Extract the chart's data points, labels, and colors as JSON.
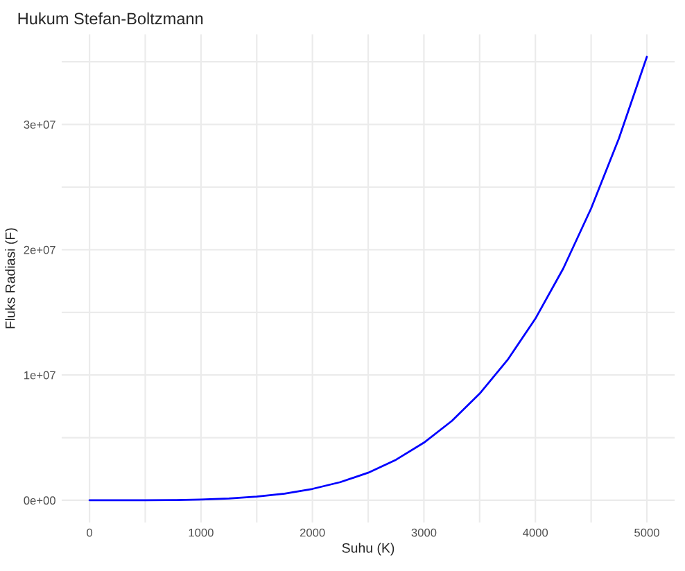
{
  "chart_data": {
    "type": "line",
    "title": "Hukum Stefan-Boltzmann",
    "xlabel": "Suhu (K)",
    "ylabel": "Fluks Radiasi (F)",
    "x": [
      0,
      250,
      500,
      750,
      1000,
      1250,
      1500,
      1750,
      2000,
      2250,
      2500,
      2750,
      3000,
      3250,
      3500,
      3750,
      4000,
      4250,
      4500,
      4750,
      5000
    ],
    "series": [
      {
        "color": "#0000ff",
        "values": [
          0,
          200,
          3500,
          18000,
          57000,
          140000,
          290000,
          530000,
          910000,
          1450000,
          2200000,
          3240000,
          4600000,
          6330000,
          8510000,
          11200000,
          14500000,
          18500000,
          23300000,
          28900000,
          35400000
        ]
      }
    ],
    "xlim": [
      -250,
      5250
    ],
    "ylim": [
      -1770000,
      37200000
    ],
    "xticks": [
      0,
      {
        "value": 500,
        "label": null
      },
      1000,
      {
        "value": 1500,
        "label": null
      },
      2000,
      {
        "value": 2500,
        "label": null
      },
      3000,
      {
        "value": 3500,
        "label": null
      },
      4000,
      {
        "value": 4500,
        "label": null
      },
      5000
    ],
    "yticks": [
      {
        "value": 0,
        "label": "0e+00"
      },
      {
        "value": 5000000,
        "label": null
      },
      {
        "value": 10000000,
        "label": "1e+07"
      },
      {
        "value": 15000000,
        "label": null
      },
      {
        "value": 20000000,
        "label": "2e+07"
      },
      {
        "value": 25000000,
        "label": null
      },
      {
        "value": 30000000,
        "label": "3e+07"
      },
      {
        "value": 35000000,
        "label": null
      }
    ],
    "grid": true,
    "legend": false,
    "line_style": "solid",
    "marker": "none"
  }
}
